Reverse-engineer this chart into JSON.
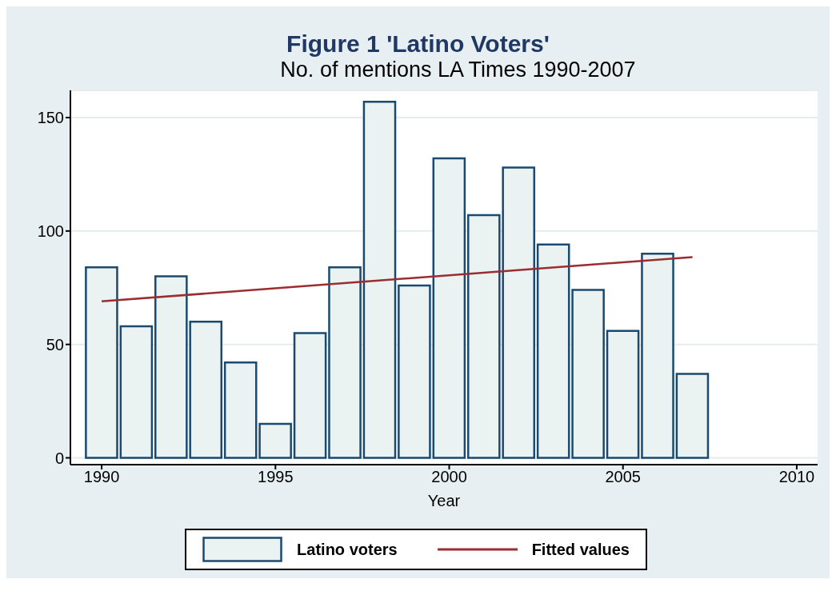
{
  "chart_data": {
    "type": "bar",
    "title": "Figure 1 'Latino Voters'",
    "subtitle": "No. of mentions LA Times 1990-2007",
    "xlabel": "Year",
    "x": [
      1990,
      1991,
      1992,
      1993,
      1994,
      1995,
      1996,
      1997,
      1998,
      1999,
      2000,
      2001,
      2002,
      2003,
      2004,
      2005,
      2006,
      2007
    ],
    "series": [
      {
        "name": "Latino voters",
        "color": "#eaf2f2",
        "values": [
          84,
          58,
          80,
          60,
          42,
          15,
          55,
          84,
          157,
          76,
          132,
          107,
          128,
          94,
          74,
          56,
          90,
          37
        ]
      },
      {
        "name": "Fitted values",
        "type": "line",
        "color": "#9b2d30",
        "x": [
          1990,
          2007
        ],
        "values": [
          69,
          88.5
        ]
      }
    ],
    "xlim": [
      1989.1,
      2010.6
    ],
    "xticks": [
      1990,
      1995,
      2000,
      2005,
      2010
    ],
    "ylim": [
      -3,
      162
    ],
    "yticks": [
      0,
      50,
      100,
      150
    ],
    "grid": "y",
    "legend": "bottom",
    "marker": "none",
    "line_style": "solid"
  }
}
